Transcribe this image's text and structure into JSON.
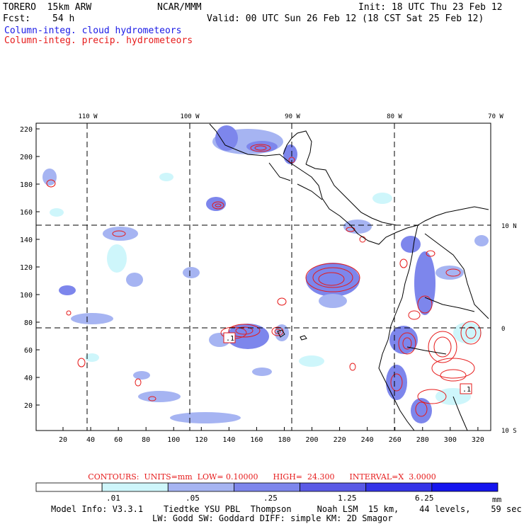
{
  "header": {
    "model_name": "TORERO  15km ARW",
    "org": "NCAR/MMM",
    "init": "Init: 18 UTC Thu 23 Feb 12",
    "fcst_label": "Fcst:",
    "fcst_value": "54 h",
    "valid": "Valid: 00 UTC Sun 26 Feb 12 (18 CST Sat 25 Feb 12)",
    "field1": "Column-integ. cloud hydrometeors",
    "field2": "Column-integ. precip. hydrometeors"
  },
  "map": {
    "lon_labels": [
      "110 W",
      "100 W",
      "90 W",
      "80 W",
      "70 W"
    ],
    "lat_labels": [
      "10 N",
      "0",
      "10 S"
    ],
    "grid_y_labels": [
      "220",
      "200",
      "180",
      "160",
      "140",
      "120",
      "100",
      "80",
      "60",
      "40",
      "20"
    ],
    "grid_x_labels": [
      "20",
      "40",
      "60",
      "80",
      "100",
      "120",
      "140",
      "160",
      "180",
      "200",
      "220",
      "240",
      "260",
      "280",
      "300",
      "320"
    ],
    "low_markers": [
      ".1",
      ".1"
    ],
    "colors": {
      "cloud_1": "#cef6fb",
      "cloud_2": "#a6b4f2",
      "cloud_3": "#7d86ec",
      "cloud_4": "#5a5ae6",
      "cloud_5": "#3434e8",
      "cloud_6": "#1414ee",
      "contour": "#e61a1a",
      "coast": "#000000"
    }
  },
  "contours_info": {
    "text": "CONTOURS:  UNITS=mm  LOW= 0.10000      HIGH=  24.300      INTERVAL=X  3.0000"
  },
  "colorbar": {
    "labels": [
      ".01",
      ".05",
      ".25",
      "1.25",
      "6.25"
    ],
    "unit": "mm",
    "colors": [
      "#ffffff",
      "#cef6fb",
      "#a6b4f2",
      "#7d86ec",
      "#5a5ae6",
      "#3434e8",
      "#1414ee"
    ]
  },
  "footer": {
    "line1": "Model Info: V3.3.1    Tiedtke YSU PBL  Thompson     Noah LSM  15 km,    44 levels,    59 sec",
    "line2": "LW: Godd SW: Goddard DIFF: simple KM: 2D Smagor"
  }
}
